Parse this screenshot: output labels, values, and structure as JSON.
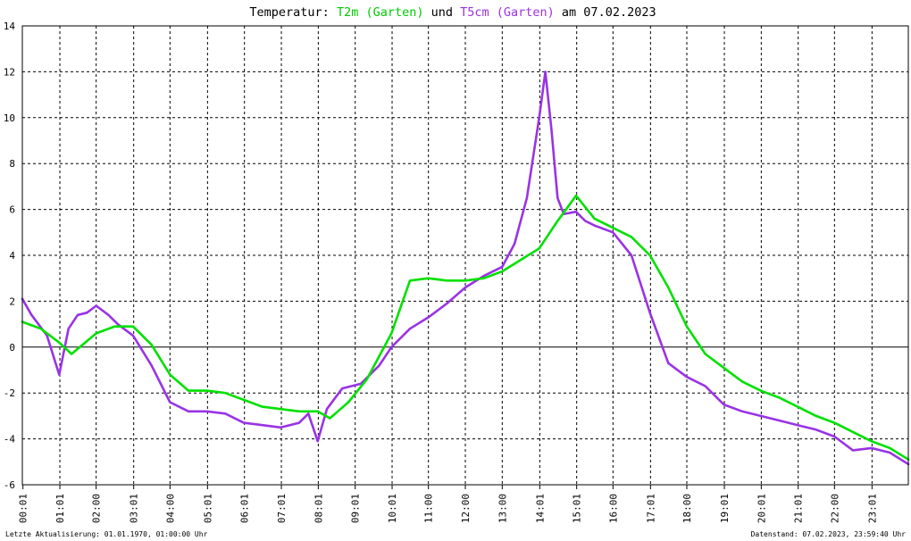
{
  "title": {
    "prefix": "Temperatur: ",
    "series1": "T2m (Garten)",
    "middle": " und ",
    "series2": "T5cm (Garten)",
    "suffix": " am 07.02.2023"
  },
  "footer": {
    "left": "Letzte Aktualisierung: 01.01.1970, 01:00:00 Uhr",
    "right": "Datenstand: 07.02.2023, 23:59:40 Uhr"
  },
  "chart_data": {
    "type": "line",
    "ylim": [
      -6,
      14
    ],
    "yticks": [
      -6,
      -4,
      -2,
      0,
      2,
      4,
      6,
      8,
      10,
      12,
      14
    ],
    "xlim": [
      "00:01",
      "24:00"
    ],
    "xticks": [
      "00:01",
      "01:01",
      "02:00",
      "03:01",
      "04:00",
      "05:01",
      "06:01",
      "07:01",
      "08:01",
      "09:01",
      "10:01",
      "11:00",
      "12:00",
      "13:00",
      "14:01",
      "15:01",
      "16:00",
      "17:01",
      "18:00",
      "19:01",
      "20:01",
      "21:01",
      "22:00",
      "23:01"
    ],
    "grid": true,
    "series": [
      {
        "name": "T2m (Garten)",
        "color": "#00e000",
        "x": [
          "00:00",
          "00:30",
          "01:00",
          "01:20",
          "02:00",
          "02:30",
          "03:00",
          "03:30",
          "04:00",
          "04:30",
          "05:00",
          "05:30",
          "06:00",
          "06:30",
          "07:00",
          "07:30",
          "08:00",
          "08:20",
          "08:50",
          "09:20",
          "10:00",
          "10:30",
          "11:00",
          "11:30",
          "12:00",
          "12:30",
          "13:00",
          "13:30",
          "14:00",
          "14:30",
          "15:00",
          "15:30",
          "16:00",
          "16:30",
          "17:00",
          "17:30",
          "18:00",
          "18:30",
          "19:00",
          "19:30",
          "20:00",
          "20:30",
          "21:00",
          "21:30",
          "22:00",
          "22:30",
          "23:00",
          "23:30",
          "24:00"
        ],
        "y": [
          1.1,
          0.8,
          0.2,
          -0.3,
          0.6,
          0.9,
          0.9,
          0.1,
          -1.2,
          -1.9,
          -1.9,
          -2.0,
          -2.3,
          -2.6,
          -2.7,
          -2.8,
          -2.8,
          -3.1,
          -2.4,
          -1.4,
          0.6,
          2.9,
          3.0,
          2.9,
          2.9,
          3.0,
          3.3,
          3.8,
          4.3,
          5.5,
          6.6,
          5.6,
          5.2,
          4.8,
          4.0,
          2.6,
          0.9,
          -0.3,
          -0.9,
          -1.5,
          -1.9,
          -2.2,
          -2.6,
          -3.0,
          -3.3,
          -3.7,
          -4.1,
          -4.4,
          -4.9
        ]
      },
      {
        "name": "T5cm (Garten)",
        "color": "#9933e6",
        "x": [
          "00:00",
          "00:15",
          "00:40",
          "01:00",
          "01:15",
          "01:30",
          "01:45",
          "02:00",
          "02:20",
          "02:35",
          "03:00",
          "03:30",
          "04:00",
          "04:30",
          "05:00",
          "05:30",
          "06:00",
          "06:30",
          "07:00",
          "07:30",
          "07:45",
          "08:00",
          "08:15",
          "08:40",
          "09:10",
          "09:40",
          "10:00",
          "10:30",
          "11:00",
          "11:30",
          "12:00",
          "12:30",
          "13:00",
          "13:20",
          "13:40",
          "14:00",
          "14:10",
          "14:20",
          "14:30",
          "14:40",
          "15:00",
          "15:15",
          "15:30",
          "16:00",
          "16:30",
          "17:00",
          "17:30",
          "18:00",
          "18:30",
          "19:00",
          "19:30",
          "20:00",
          "20:30",
          "21:00",
          "21:30",
          "22:00",
          "22:30",
          "23:00",
          "23:30",
          "24:00"
        ],
        "y": [
          2.1,
          1.4,
          0.5,
          -1.2,
          0.8,
          1.4,
          1.5,
          1.8,
          1.4,
          1.0,
          0.5,
          -0.8,
          -2.4,
          -2.8,
          -2.8,
          -2.9,
          -3.3,
          -3.4,
          -3.5,
          -3.3,
          -2.9,
          -4.1,
          -2.7,
          -1.8,
          -1.6,
          -0.8,
          0.0,
          0.8,
          1.3,
          1.9,
          2.6,
          3.1,
          3.5,
          4.5,
          6.5,
          10.0,
          12.0,
          9.5,
          6.5,
          5.8,
          5.9,
          5.5,
          5.3,
          5.0,
          4.0,
          1.5,
          -0.7,
          -1.3,
          -1.7,
          -2.5,
          -2.8,
          -3.0,
          -3.2,
          -3.4,
          -3.6,
          -3.9,
          -4.5,
          -4.4,
          -4.6,
          -5.1
        ]
      }
    ]
  }
}
